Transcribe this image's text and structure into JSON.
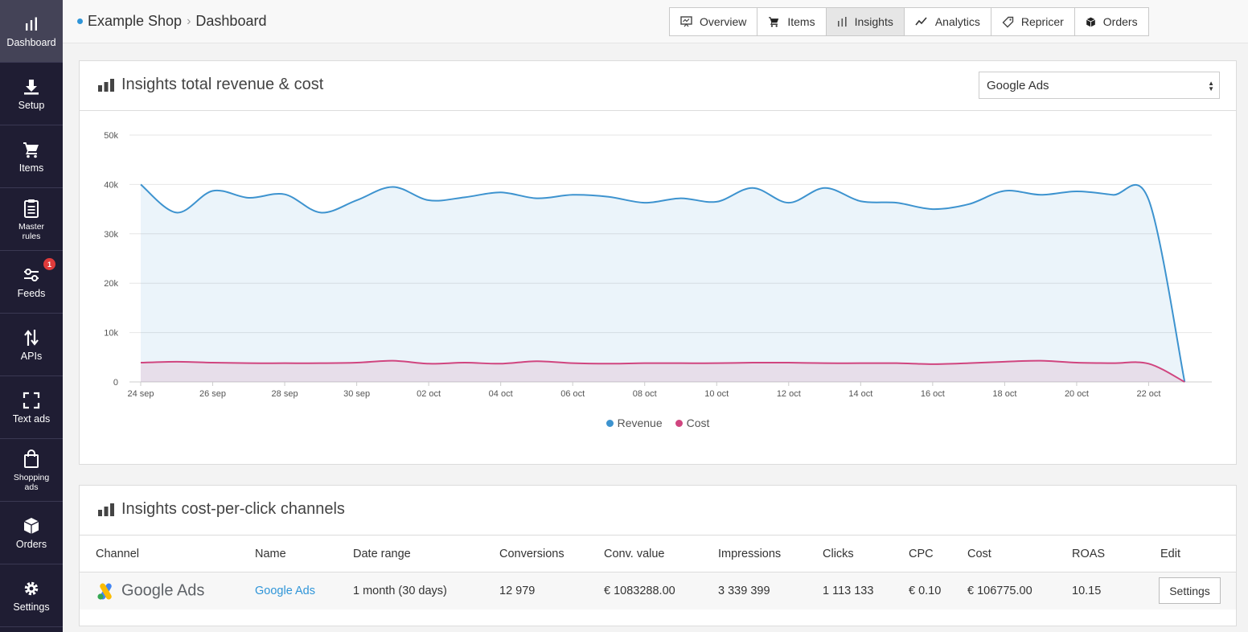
{
  "sidebar": {
    "items": [
      {
        "label": "Dashboard",
        "icon": "bar-chart-icon"
      },
      {
        "label": "Setup",
        "icon": "download-icon"
      },
      {
        "label": "Items",
        "icon": "cart-icon"
      },
      {
        "label": "Master rules",
        "icon": "clipboard-icon"
      },
      {
        "label": "Feeds",
        "icon": "sliders-icon",
        "badge": "1"
      },
      {
        "label": "APIs",
        "icon": "swap-arrows-icon"
      },
      {
        "label": "Text ads",
        "icon": "fullscreen-icon"
      },
      {
        "label": "Shopping ads",
        "icon": "shopping-bag-icon"
      },
      {
        "label": "Orders",
        "icon": "box-icon"
      },
      {
        "label": "Settings",
        "icon": "gear-icon"
      }
    ]
  },
  "header": {
    "shop": "Example Shop",
    "page": "Dashboard",
    "tabs": [
      {
        "label": "Overview",
        "icon": "presentation-icon"
      },
      {
        "label": "Items",
        "icon": "cart-icon"
      },
      {
        "label": "Insights",
        "icon": "bar-chart-icon"
      },
      {
        "label": "Analytics",
        "icon": "line-chart-icon"
      },
      {
        "label": "Repricer",
        "icon": "tag-icon"
      },
      {
        "label": "Orders",
        "icon": "box-icon"
      }
    ],
    "active_tab": "Insights"
  },
  "revenue_panel": {
    "title": "Insights total revenue & cost",
    "select_value": "Google Ads"
  },
  "colors": {
    "revenue": "#3d93cf",
    "cost": "#d0457f",
    "accent": "#2f95d8"
  },
  "chart_data": {
    "type": "area",
    "title": "Insights total revenue & cost",
    "ylim": [
      0,
      50000
    ],
    "y_ticks": [
      "0",
      "10k",
      "20k",
      "30k",
      "40k",
      "50k"
    ],
    "x_ticks": [
      "24 sep",
      "26 sep",
      "28 sep",
      "30 sep",
      "02 oct",
      "04 oct",
      "06 oct",
      "08 oct",
      "10 oct",
      "12 oct",
      "14 oct",
      "16 oct",
      "18 oct",
      "20 oct",
      "22 oct"
    ],
    "x": [
      "24 sep",
      "25 sep",
      "26 sep",
      "27 sep",
      "28 sep",
      "29 sep",
      "30 sep",
      "01 oct",
      "02 oct",
      "03 oct",
      "04 oct",
      "05 oct",
      "06 oct",
      "07 oct",
      "08 oct",
      "09 oct",
      "10 oct",
      "11 oct",
      "12 oct",
      "13 oct",
      "14 oct",
      "15 oct",
      "16 oct",
      "17 oct",
      "18 oct",
      "19 oct",
      "20 oct",
      "21 oct",
      "22 oct",
      "23 oct"
    ],
    "grid": true,
    "legend_position": "bottom",
    "series": [
      {
        "name": "Revenue",
        "values": [
          40000,
          34300,
          38700,
          37300,
          38000,
          34300,
          36800,
          39500,
          36800,
          37400,
          38400,
          37200,
          37900,
          37500,
          36300,
          37200,
          36500,
          39300,
          36300,
          39300,
          36600,
          36300,
          35000,
          36000,
          38700,
          37900,
          38600,
          37900,
          36900,
          0
        ]
      },
      {
        "name": "Cost",
        "values": [
          3900,
          4100,
          3900,
          3800,
          3800,
          3800,
          3900,
          4300,
          3700,
          3900,
          3700,
          4200,
          3800,
          3700,
          3800,
          3800,
          3800,
          3900,
          3900,
          3800,
          3800,
          3800,
          3600,
          3800,
          4100,
          4300,
          3900,
          3800,
          3700,
          0
        ]
      }
    ]
  },
  "cpc_panel": {
    "title": "Insights cost-per-click channels",
    "columns": [
      "Channel",
      "Name",
      "Date range",
      "Conversions",
      "Conv. value",
      "Impressions",
      "Clicks",
      "CPC",
      "Cost",
      "ROAS",
      "Edit"
    ],
    "rows": [
      {
        "channel": "Google Ads",
        "name": "Google Ads",
        "date_range": "1 month (30 days)",
        "conversions": "12 979",
        "conv_value": "€ 1083288.00",
        "impressions": "3 339 399",
        "clicks": "1 113 133",
        "cpc": "€ 0.10",
        "cost": "€ 106775.00",
        "roas": "10.15",
        "edit_label": "Settings"
      }
    ]
  }
}
